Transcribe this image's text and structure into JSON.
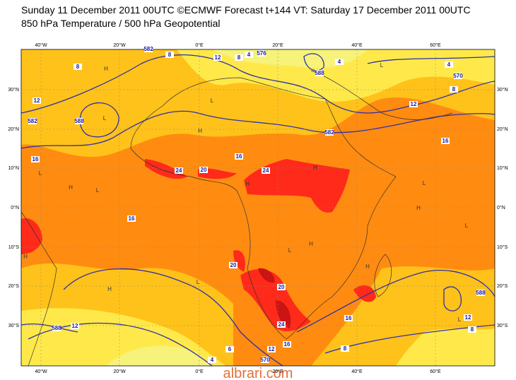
{
  "header": {
    "line1": "Sunday 11 December 2011 00UTC ©ECMWF Forecast t+144 VT: Saturday 17 December 2011 00UTC",
    "line2": "850 hPa Temperature / 500 hPa Geopotential"
  },
  "map": {
    "lon_labels": [
      "40°W",
      "20°W",
      "0°E",
      "20°E",
      "40°E",
      "60°E"
    ],
    "lat_labels": [
      "30°N",
      "20°N",
      "10°N",
      "0°N",
      "10°S",
      "20°S",
      "30°S"
    ],
    "contour_labels": [
      "582",
      "8",
      "12",
      "8",
      "4",
      "576",
      "588",
      "4",
      "4",
      "570",
      "8",
      "12",
      "582",
      "16",
      "12",
      "582",
      "588",
      "8",
      "16",
      "16",
      "24",
      "20",
      "24",
      "16",
      "20",
      "20",
      "24",
      "16",
      "16",
      "12",
      "12",
      "8",
      "8",
      "588",
      "12",
      "570",
      "6",
      "4",
      "588"
    ],
    "pressure_markers": [
      "H",
      "L",
      "H",
      "L",
      "H",
      "L",
      "H",
      "L",
      "H",
      "L",
      "H",
      "L",
      "H",
      "L",
      "H",
      "L",
      "H",
      "L",
      "H",
      "L"
    ]
  },
  "watermark": "albrari.com"
}
